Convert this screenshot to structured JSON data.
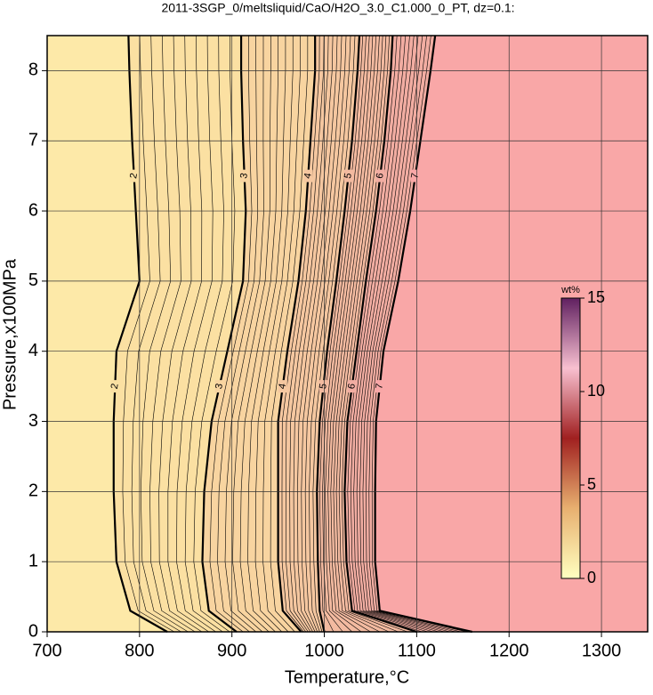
{
  "chart_data": {
    "type": "contour",
    "title": "2011-3SGP_0/meltsliquid/CaO/H2O_3.0_C1.000_0_PT, dz=0.1:",
    "x_label": "Temperature,°C",
    "y_label": "Pressure,x100MPa",
    "xlim": [
      700,
      1350
    ],
    "ylim": [
      0,
      8.5
    ],
    "xticks": [
      700,
      800,
      900,
      1000,
      1100,
      1200,
      1300
    ],
    "yticks": [
      0,
      1,
      2,
      3,
      4,
      5,
      6,
      7,
      8
    ],
    "grid": true,
    "base_fill": "#fde9a8",
    "pressures": [
      0,
      0.3,
      1,
      2,
      3,
      4,
      5,
      6,
      7,
      8,
      8.5
    ],
    "contours": [
      {
        "level": 2,
        "fill": "#fbe0a2",
        "x": [
          830,
          790,
          775,
          772,
          772,
          775,
          800,
          796,
          792,
          789,
          788
        ]
      },
      {
        "level": 3,
        "fill": "#f8d4a0",
        "x": [
          905,
          875,
          868,
          870,
          878,
          895,
          912,
          915,
          912,
          910,
          910
        ]
      },
      {
        "level": 4,
        "fill": "#f5c7a0",
        "x": [
          975,
          955,
          950,
          950,
          950,
          960,
          972,
          980,
          985,
          990,
          990
        ]
      },
      {
        "level": 5,
        "fill": "#f3baa0",
        "x": [
          1000,
          995,
          993,
          992,
          995,
          1003,
          1013,
          1022,
          1030,
          1036,
          1038
        ]
      },
      {
        "level": 6,
        "fill": "#f2ada2",
        "x": [
          1100,
          1030,
          1024,
          1022,
          1025,
          1035,
          1045,
          1056,
          1065,
          1072,
          1074
        ]
      },
      {
        "level": 7,
        "fill": "#f9a7a7",
        "x": [
          1160,
          1060,
          1055,
          1055,
          1056,
          1064,
          1080,
          1093,
          1104,
          1115,
          1120
        ]
      }
    ],
    "colorbar": {
      "label": "wt%",
      "lim": [
        0,
        15
      ],
      "ticks": [
        0,
        5,
        10,
        15
      ],
      "colors": [
        "#ffffc0",
        "#e8b070",
        "#a02020",
        "#f8c0d0",
        "#602060"
      ]
    }
  }
}
